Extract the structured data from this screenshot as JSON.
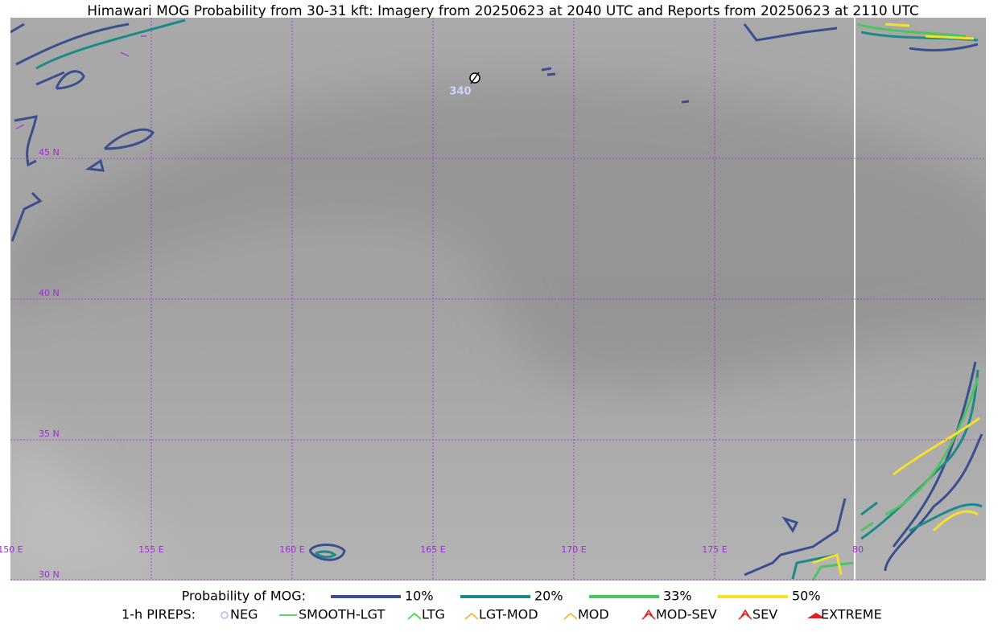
{
  "title": "Himawari MOG Probability from 30-31 kft: Imagery from 20250623 at 2040 UTC and Reports from 20250623 at 2110 UTC",
  "map": {
    "lat_labels": [
      "45 N",
      "40 N",
      "35 N",
      "30 N"
    ],
    "lon_labels": [
      "150 E",
      "155 E",
      "160 E",
      "165 E",
      "170 E",
      "175 E",
      "80"
    ],
    "reports": [
      {
        "label": "340"
      }
    ]
  },
  "legend": {
    "probability": {
      "label": "Probability of MOG:",
      "items": [
        {
          "label": "10%",
          "color": "#3a4f8f"
        },
        {
          "label": "20%",
          "color": "#1c8a88"
        },
        {
          "label": "33%",
          "color": "#4fc35f"
        },
        {
          "label": "50%",
          "color": "#f5e02a"
        }
      ]
    },
    "pireps": {
      "label": "1-h PIREPS:",
      "items": [
        {
          "label": "NEG",
          "color": "#b8b8f0"
        },
        {
          "label": "SMOOTH-LGT",
          "color": "#33cc33"
        },
        {
          "label": "LTG",
          "color": "#22dd22"
        },
        {
          "label": "LGT-MOD",
          "color": "#f0b020"
        },
        {
          "label": "MOD",
          "color": "#f0b020"
        },
        {
          "label": "MOD-SEV",
          "color": "#e02020"
        },
        {
          "label": "SEV",
          "color": "#e02020"
        },
        {
          "label": "EXTREME",
          "color": "#e02020"
        }
      ]
    }
  }
}
